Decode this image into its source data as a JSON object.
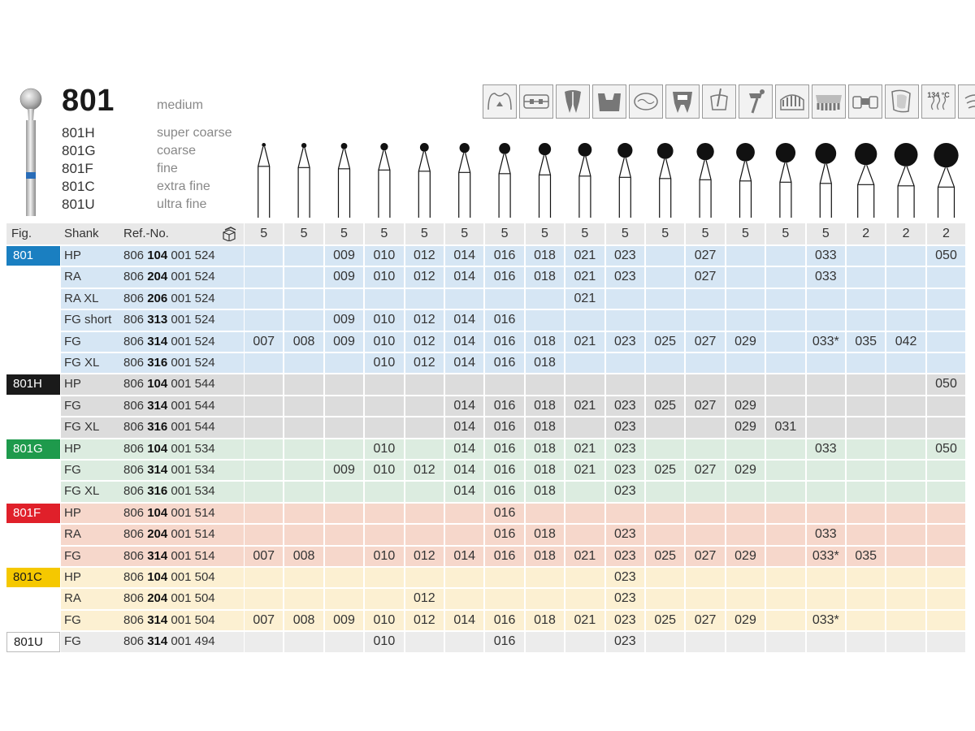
{
  "header": {
    "title": "801",
    "grit_default": "medium",
    "variants": [
      {
        "code": "801H",
        "name": "super coarse"
      },
      {
        "code": "801G",
        "name": "coarse"
      },
      {
        "code": "801F",
        "name": "fine"
      },
      {
        "code": "801C",
        "name": "extra fine"
      },
      {
        "code": "801U",
        "name": "ultra fine"
      }
    ],
    "application_icons": [
      "crown-prep-icon",
      "orthodontic-icon",
      "root-canal-icon",
      "cavity-prep-icon",
      "occlusal-icon",
      "crown-tooth-icon",
      "endo-access-icon",
      "implant-icon",
      "lab-model-icon",
      "denture-icon",
      "bridge-icon",
      "veneer-icon",
      "sterilize-134-icon",
      "ultrasonic-clean-icon"
    ],
    "sterilize_label": "134 °C"
  },
  "table": {
    "headers": {
      "fig": "Fig.",
      "shank": "Shank",
      "ref": "Ref.-No."
    },
    "pack_icon": "package-icon",
    "pack_quantities": [
      "5",
      "5",
      "5",
      "5",
      "5",
      "5",
      "5",
      "5",
      "5",
      "5",
      "5",
      "5",
      "5",
      "5",
      "5",
      "2",
      "2",
      "2"
    ],
    "groups": [
      {
        "fig": "801",
        "color": "#1a7fc1",
        "bg": "#d6e6f4",
        "label_color": "#ffffff",
        "rows": [
          {
            "shank": "HP",
            "ref_pre": "806",
            "ref_bold": "104",
            "ref_post": "001 524",
            "sizes": [
              "",
              "",
              "009",
              "010",
              "012",
              "014",
              "016",
              "018",
              "021",
              "023",
              "",
              "027",
              "",
              "",
              "033",
              "",
              "",
              "050"
            ]
          },
          {
            "shank": "RA",
            "ref_pre": "806",
            "ref_bold": "204",
            "ref_post": "001 524",
            "sizes": [
              "",
              "",
              "009",
              "010",
              "012",
              "014",
              "016",
              "018",
              "021",
              "023",
              "",
              "027",
              "",
              "",
              "033",
              "",
              "",
              ""
            ]
          },
          {
            "shank": "RA XL",
            "ref_pre": "806",
            "ref_bold": "206",
            "ref_post": "001 524",
            "sizes": [
              "",
              "",
              "",
              "",
              "",
              "",
              "",
              "",
              "021",
              "",
              "",
              "",
              "",
              "",
              "",
              "",
              "",
              ""
            ]
          },
          {
            "shank": "FG short",
            "ref_pre": "806",
            "ref_bold": "313",
            "ref_post": "001 524",
            "sizes": [
              "",
              "",
              "009",
              "010",
              "012",
              "014",
              "016",
              "",
              "",
              "",
              "",
              "",
              "",
              "",
              "",
              "",
              "",
              ""
            ]
          },
          {
            "shank": "FG",
            "ref_pre": "806",
            "ref_bold": "314",
            "ref_post": "001 524",
            "sizes": [
              "007",
              "008",
              "009",
              "010",
              "012",
              "014",
              "016",
              "018",
              "021",
              "023",
              "025",
              "027",
              "029",
              "",
              "033*",
              "035",
              "042",
              ""
            ]
          },
          {
            "shank": "FG XL",
            "ref_pre": "806",
            "ref_bold": "316",
            "ref_post": "001 524",
            "sizes": [
              "",
              "",
              "",
              "010",
              "012",
              "014",
              "016",
              "018",
              "",
              "",
              "",
              "",
              "",
              "",
              "",
              "",
              "",
              ""
            ]
          }
        ]
      },
      {
        "fig": "801H",
        "color": "#1a1a1a",
        "bg": "#dcdcdc",
        "label_color": "#ffffff",
        "rows": [
          {
            "shank": "HP",
            "ref_pre": "806",
            "ref_bold": "104",
            "ref_post": "001 544",
            "sizes": [
              "",
              "",
              "",
              "",
              "",
              "",
              "",
              "",
              "",
              "",
              "",
              "",
              "",
              "",
              "",
              "",
              "",
              "050"
            ]
          },
          {
            "shank": "FG",
            "ref_pre": "806",
            "ref_bold": "314",
            "ref_post": "001 544",
            "sizes": [
              "",
              "",
              "",
              "",
              "",
              "014",
              "016",
              "018",
              "021",
              "023",
              "025",
              "027",
              "029",
              "",
              "",
              "",
              "",
              ""
            ]
          },
          {
            "shank": "FG XL",
            "ref_pre": "806",
            "ref_bold": "316",
            "ref_post": "001 544",
            "sizes": [
              "",
              "",
              "",
              "",
              "",
              "014",
              "016",
              "018",
              "",
              "023",
              "",
              "",
              "029",
              "031",
              "",
              "",
              "",
              ""
            ]
          }
        ]
      },
      {
        "fig": "801G",
        "color": "#1e9a4c",
        "bg": "#dcece0",
        "label_color": "#ffffff",
        "rows": [
          {
            "shank": "HP",
            "ref_pre": "806",
            "ref_bold": "104",
            "ref_post": "001 534",
            "sizes": [
              "",
              "",
              "",
              "010",
              "",
              "014",
              "016",
              "018",
              "021",
              "023",
              "",
              "",
              "",
              "",
              "033",
              "",
              "",
              "050"
            ]
          },
          {
            "shank": "FG",
            "ref_pre": "806",
            "ref_bold": "314",
            "ref_post": "001 534",
            "sizes": [
              "",
              "",
              "009",
              "010",
              "012",
              "014",
              "016",
              "018",
              "021",
              "023",
              "025",
              "027",
              "029",
              "",
              "",
              "",
              "",
              ""
            ]
          },
          {
            "shank": "FG XL",
            "ref_pre": "806",
            "ref_bold": "316",
            "ref_post": "001 534",
            "sizes": [
              "",
              "",
              "",
              "",
              "",
              "014",
              "016",
              "018",
              "",
              "023",
              "",
              "",
              "",
              "",
              "",
              "",
              "",
              ""
            ]
          }
        ]
      },
      {
        "fig": "801F",
        "color": "#e0202a",
        "bg": "#f6d7cb",
        "label_color": "#ffffff",
        "rows": [
          {
            "shank": "HP",
            "ref_pre": "806",
            "ref_bold": "104",
            "ref_post": "001 514",
            "sizes": [
              "",
              "",
              "",
              "",
              "",
              "",
              "016",
              "",
              "",
              "",
              "",
              "",
              "",
              "",
              "",
              "",
              "",
              ""
            ]
          },
          {
            "shank": "RA",
            "ref_pre": "806",
            "ref_bold": "204",
            "ref_post": "001 514",
            "sizes": [
              "",
              "",
              "",
              "",
              "",
              "",
              "016",
              "018",
              "",
              "023",
              "",
              "",
              "",
              "",
              "033",
              "",
              "",
              ""
            ]
          },
          {
            "shank": "FG",
            "ref_pre": "806",
            "ref_bold": "314",
            "ref_post": "001 514",
            "sizes": [
              "007",
              "008",
              "",
              "010",
              "012",
              "014",
              "016",
              "018",
              "021",
              "023",
              "025",
              "027",
              "029",
              "",
              "033*",
              "035",
              "",
              ""
            ]
          }
        ]
      },
      {
        "fig": "801C",
        "color": "#f5c800",
        "bg": "#fcf0d2",
        "label_color": "#1a1a1a",
        "rows": [
          {
            "shank": "HP",
            "ref_pre": "806",
            "ref_bold": "104",
            "ref_post": "001 504",
            "sizes": [
              "",
              "",
              "",
              "",
              "",
              "",
              "",
              "",
              "",
              "023",
              "",
              "",
              "",
              "",
              "",
              "",
              "",
              ""
            ]
          },
          {
            "shank": "RA",
            "ref_pre": "806",
            "ref_bold": "204",
            "ref_post": "001 504",
            "sizes": [
              "",
              "",
              "",
              "",
              "012",
              "",
              "",
              "",
              "",
              "023",
              "",
              "",
              "",
              "",
              "",
              "",
              "",
              ""
            ]
          },
          {
            "shank": "FG",
            "ref_pre": "806",
            "ref_bold": "314",
            "ref_post": "001 504",
            "sizes": [
              "007",
              "008",
              "009",
              "010",
              "012",
              "014",
              "016",
              "018",
              "021",
              "023",
              "025",
              "027",
              "029",
              "",
              "033*",
              "",
              "",
              ""
            ]
          }
        ]
      },
      {
        "fig": "801U",
        "color": "#ffffff",
        "bg": "#ececec",
        "label_color": "#1a1a1a",
        "rows": [
          {
            "shank": "FG",
            "ref_pre": "806",
            "ref_bold": "314",
            "ref_post": "001 494",
            "sizes": [
              "",
              "",
              "",
              "010",
              "",
              "",
              "016",
              "",
              "",
              "023",
              "",
              "",
              "",
              "",
              "",
              "",
              "",
              ""
            ]
          }
        ]
      }
    ]
  }
}
